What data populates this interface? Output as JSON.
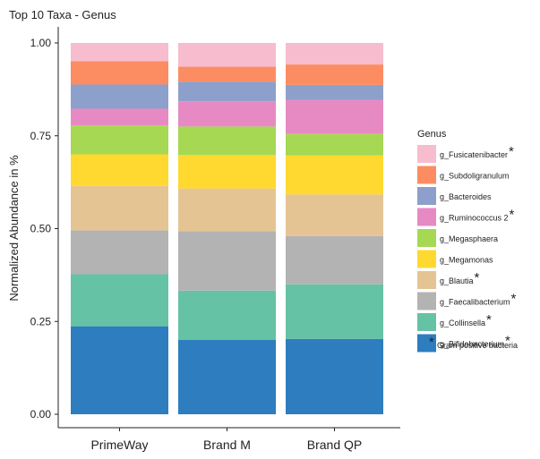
{
  "chart_data": {
    "type": "bar",
    "stacked": true,
    "title": "Top 10 Taxa - Genus",
    "xlabel": "",
    "ylabel": "Normalized Abundance in %",
    "ylim": [
      0,
      1
    ],
    "yticks": [
      "0.00",
      "0.25",
      "0.50",
      "0.75",
      "1.00"
    ],
    "categories": [
      "PrimeWay",
      "Brand M",
      "Brand QP"
    ],
    "grid": false,
    "legend": {
      "title": "Genus",
      "position": "right"
    },
    "series": [
      {
        "name": "g_Bifidobacterium",
        "color": "#2e7dbe",
        "values": [
          0.237,
          0.2,
          0.203
        ],
        "gram_positive": true
      },
      {
        "name": "g_Collinsella",
        "color": "#66c2a5",
        "values": [
          0.14,
          0.133,
          0.147
        ],
        "gram_positive": true
      },
      {
        "name": "g_Faecalibacterium",
        "color": "#b3b3b3",
        "values": [
          0.118,
          0.16,
          0.13
        ],
        "gram_positive": true
      },
      {
        "name": "g_Blautia",
        "color": "#e5c494",
        "values": [
          0.12,
          0.115,
          0.112
        ],
        "gram_positive": true
      },
      {
        "name": "g_Megamonas",
        "color": "#ffd92f",
        "values": [
          0.085,
          0.09,
          0.105
        ],
        "gram_positive": false
      },
      {
        "name": "g_Megasphaera",
        "color": "#a6d854",
        "values": [
          0.078,
          0.077,
          0.058
        ],
        "gram_positive": false
      },
      {
        "name": "g_Ruminococcus 2",
        "color": "#e78ac3",
        "values": [
          0.045,
          0.068,
          0.092
        ],
        "gram_positive": true
      },
      {
        "name": "g_Bacteroides",
        "color": "#8da0cb",
        "values": [
          0.065,
          0.053,
          0.04
        ],
        "gram_positive": false
      },
      {
        "name": "g_Subdoligranulum",
        "color": "#fc8d62",
        "values": [
          0.063,
          0.04,
          0.055
        ],
        "gram_positive": false
      },
      {
        "name": "g_Fusicatenibacter",
        "color": "#f7bccd",
        "values": [
          0.049,
          0.064,
          0.058
        ],
        "gram_positive": true
      }
    ],
    "annotation": {
      "marker": "*",
      "text": "Gram positive bacteria"
    }
  }
}
